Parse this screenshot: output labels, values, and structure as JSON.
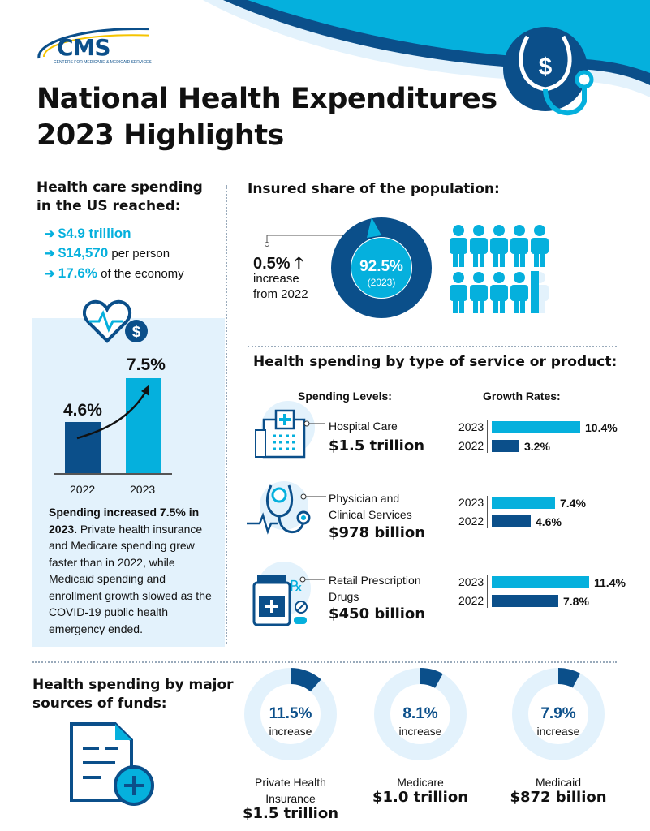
{
  "logo": {
    "text": "CMS",
    "subtitle": "CENTERS FOR MEDICARE & MEDICAID SERVICES"
  },
  "title": {
    "line1": "National Health Expenditures",
    "line2": "2023 Highlights"
  },
  "colors": {
    "dark": "#0b4f8a",
    "light": "#05b0dd",
    "pale": "#e3f2fc"
  },
  "spending": {
    "heading1": "Health care spending",
    "heading2": "in the US reached:",
    "bullets": [
      {
        "value": "$4.9 trillion",
        "suffix": ""
      },
      {
        "value": "$14,570",
        "suffix": " per person"
      },
      {
        "value": "17.6%",
        "suffix": " of the economy"
      }
    ],
    "chart": {
      "bars": [
        {
          "year": "2022",
          "label": "4.6%",
          "value": 4.6
        },
        {
          "year": "2023",
          "label": "7.5%",
          "value": 7.5
        }
      ]
    },
    "summary_bold": "Spending increased 7.5% in 2023.",
    "summary_rest": " Private health insurance and Medicare spending grew faster than in 2022, while Medicaid spending and enrollment growth slowed as the COVID-19 public health emergency ended."
  },
  "insured": {
    "heading": "Insured share of the population:",
    "change": "0.5%",
    "change_line1": "increase",
    "change_line2": "from 2022",
    "share": "92.5%",
    "share_year": "(2023)",
    "share_value": 92.5
  },
  "by_service": {
    "heading": "Health spending by type of service or product:",
    "levels_label": "Spending Levels:",
    "growth_label": "Growth Rates:",
    "rows": [
      {
        "name1": "Hospital Care",
        "name2": "",
        "amount": "$1.5 trillion",
        "growth": [
          {
            "year": "2023",
            "label": "10.4%",
            "value": 10.4
          },
          {
            "year": "2022",
            "label": "3.2%",
            "value": 3.2
          }
        ]
      },
      {
        "name1": "Physician and",
        "name2": "Clinical Services",
        "amount": "$978 billion",
        "growth": [
          {
            "year": "2023",
            "label": "7.4%",
            "value": 7.4
          },
          {
            "year": "2022",
            "label": "4.6%",
            "value": 4.6
          }
        ]
      },
      {
        "name1": "Retail Prescription",
        "name2": "Drugs",
        "amount": "$450 billion",
        "growth": [
          {
            "year": "2023",
            "label": "11.4%",
            "value": 11.4
          },
          {
            "year": "2022",
            "label": "7.8%",
            "value": 7.8
          }
        ]
      }
    ]
  },
  "sources": {
    "heading1": "Health spending by major",
    "heading2": "sources of funds:",
    "increase_label": "increase",
    "items": [
      {
        "pct": "11.5%",
        "value": 11.5,
        "name1": "Private Health",
        "name2": "Insurance",
        "amount": "$1.5 trillion"
      },
      {
        "pct": "8.1%",
        "value": 8.1,
        "name1": "Medicare",
        "name2": "",
        "amount": "$1.0 trillion"
      },
      {
        "pct": "7.9%",
        "value": 7.9,
        "name1": "Medicaid",
        "name2": "",
        "amount": "$872 billion"
      }
    ]
  }
}
